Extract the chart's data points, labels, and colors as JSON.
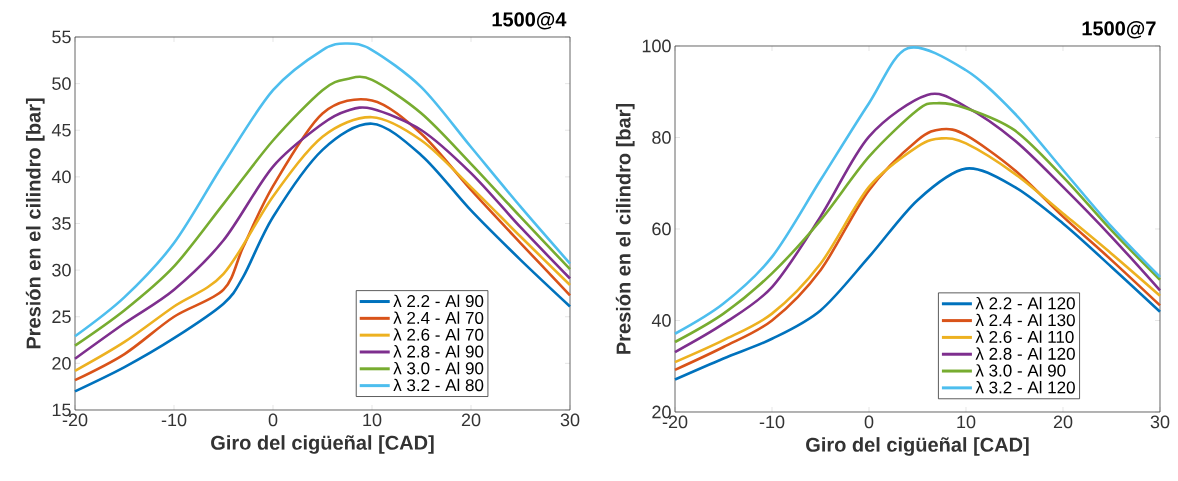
{
  "chart_data": [
    {
      "type": "line",
      "title": "1500@4",
      "xlabel": "Giro del cigüeñal [CAD]",
      "ylabel": "Presión en el cilindro [bar]",
      "xlim": [
        -20,
        30
      ],
      "ylim": [
        15,
        55
      ],
      "xticks": [
        -20,
        -10,
        0,
        10,
        20,
        30
      ],
      "yticks": [
        15,
        20,
        25,
        30,
        35,
        40,
        45,
        50,
        55
      ],
      "legend": "bottom right",
      "marker": "none",
      "line_style": "solid",
      "series": [
        {
          "name": "λ 2.2 - Al 90",
          "color": "#0072bd",
          "x": [
            -20,
            -15,
            -10,
            -5,
            -3,
            0,
            5,
            10,
            15,
            20,
            25,
            30
          ],
          "values": [
            17.0,
            19.6,
            22.7,
            26.4,
            29.3,
            35.7,
            42.9,
            45.7,
            42.3,
            36.4,
            31.1,
            26.1
          ]
        },
        {
          "name": "λ 2.4 - Al 70",
          "color": "#d95319",
          "x": [
            -20,
            -15,
            -10,
            -5,
            -3,
            0,
            5,
            10,
            15,
            20,
            25,
            30
          ],
          "values": [
            18.2,
            21.0,
            25.0,
            27.9,
            32.5,
            39.0,
            46.8,
            48.2,
            44.6,
            38.6,
            32.9,
            27.3
          ]
        },
        {
          "name": "λ 2.6 - Al 70",
          "color": "#edb120",
          "x": [
            -20,
            -15,
            -10,
            -5,
            0,
            5,
            10,
            15,
            20,
            25,
            30
          ],
          "values": [
            19.2,
            22.3,
            26.1,
            29.6,
            37.9,
            44.3,
            46.4,
            43.9,
            38.9,
            33.6,
            28.4
          ]
        },
        {
          "name": "λ 2.8 - Al 90",
          "color": "#7e2f8e",
          "x": [
            -20,
            -15,
            -10,
            -5,
            0,
            5,
            7.5,
            10,
            15,
            20,
            25,
            30
          ],
          "values": [
            20.5,
            24.3,
            27.9,
            33.2,
            41.1,
            45.7,
            47.1,
            47.3,
            45.0,
            40.4,
            34.6,
            29.1
          ]
        },
        {
          "name": "λ 3.0 - Al 90",
          "color": "#77ac30",
          "x": [
            -20,
            -15,
            -10,
            -5,
            0,
            5,
            7.5,
            10,
            15,
            20,
            25,
            30
          ],
          "values": [
            21.9,
            25.7,
            30.4,
            37.1,
            43.9,
            49.3,
            50.5,
            50.4,
            46.8,
            41.4,
            35.7,
            30.1
          ]
        },
        {
          "name": "λ 3.2 - Al 80",
          "color": "#4dbeee",
          "x": [
            -20,
            -15,
            -10,
            -5,
            0,
            5,
            7.5,
            10,
            15,
            20,
            25,
            30
          ],
          "values": [
            22.9,
            27.1,
            32.9,
            41.4,
            49.3,
            53.6,
            54.3,
            53.6,
            49.6,
            43.2,
            36.8,
            30.7
          ]
        }
      ]
    },
    {
      "type": "line",
      "title": "1500@7",
      "xlabel": "Giro del cigüeñal [CAD]",
      "ylabel": "Presión en el cilindro [bar]",
      "xlim": [
        -20,
        30
      ],
      "ylim": [
        20,
        100
      ],
      "xticks": [
        -20,
        -10,
        0,
        10,
        20,
        30
      ],
      "yticks": [
        20,
        40,
        60,
        80,
        100
      ],
      "legend": "bottom right",
      "marker": "none",
      "line_style": "solid",
      "series": [
        {
          "name": "λ 2.2 - Al 120",
          "color": "#0072bd",
          "x": [
            -20,
            -15,
            -10,
            -5,
            0,
            5,
            10,
            15,
            20,
            25,
            30
          ],
          "values": [
            27.1,
            31.7,
            36.0,
            42.2,
            53.9,
            66.3,
            73.2,
            69.2,
            61.2,
            51.7,
            41.9
          ]
        },
        {
          "name": "λ 2.4 - Al 130",
          "color": "#d95319",
          "x": [
            -20,
            -15,
            -10,
            -5,
            0,
            5,
            7.5,
            10,
            15,
            20,
            25,
            30
          ],
          "values": [
            29.2,
            34.2,
            40.0,
            51.0,
            68.5,
            79.4,
            81.8,
            80.5,
            72.9,
            62.7,
            53.2,
            43.3
          ]
        },
        {
          "name": "λ 2.6 - Al 110",
          "color": "#edb120",
          "x": [
            -20,
            -15,
            -10,
            -5,
            0,
            5,
            7.5,
            10,
            15,
            20,
            25,
            30
          ],
          "values": [
            30.9,
            35.7,
            41.5,
            52.4,
            69.2,
            78.0,
            79.8,
            78.7,
            72.1,
            63.4,
            54.6,
            45.4
          ]
        },
        {
          "name": "λ 2.8 - Al 120",
          "color": "#7e2f8e",
          "x": [
            -20,
            -15,
            -10,
            -5,
            0,
            6,
            10,
            15,
            20,
            25,
            30
          ],
          "values": [
            33.1,
            39.3,
            47.3,
            62.7,
            80.2,
            89.3,
            86.7,
            79.4,
            69.2,
            58.3,
            46.6
          ]
        },
        {
          "name": "λ 3.0 - Al 90",
          "color": "#77ac30",
          "x": [
            -20,
            -15,
            -10,
            -5,
            0,
            5,
            7,
            10,
            15,
            20,
            25,
            30
          ],
          "values": [
            35.3,
            41.5,
            50.3,
            61.9,
            75.8,
            86.0,
            87.5,
            86.4,
            81.6,
            71.4,
            59.7,
            48.9
          ]
        },
        {
          "name": "λ 3.2 - Al 120",
          "color": "#4dbeee",
          "x": [
            -20,
            -15,
            -10,
            -5,
            0,
            4,
            10,
            15,
            20,
            25,
            30
          ],
          "values": [
            37.1,
            43.7,
            53.9,
            70.7,
            87.5,
            99.5,
            94.7,
            85.3,
            72.9,
            60.5,
            49.5
          ]
        }
      ]
    }
  ]
}
